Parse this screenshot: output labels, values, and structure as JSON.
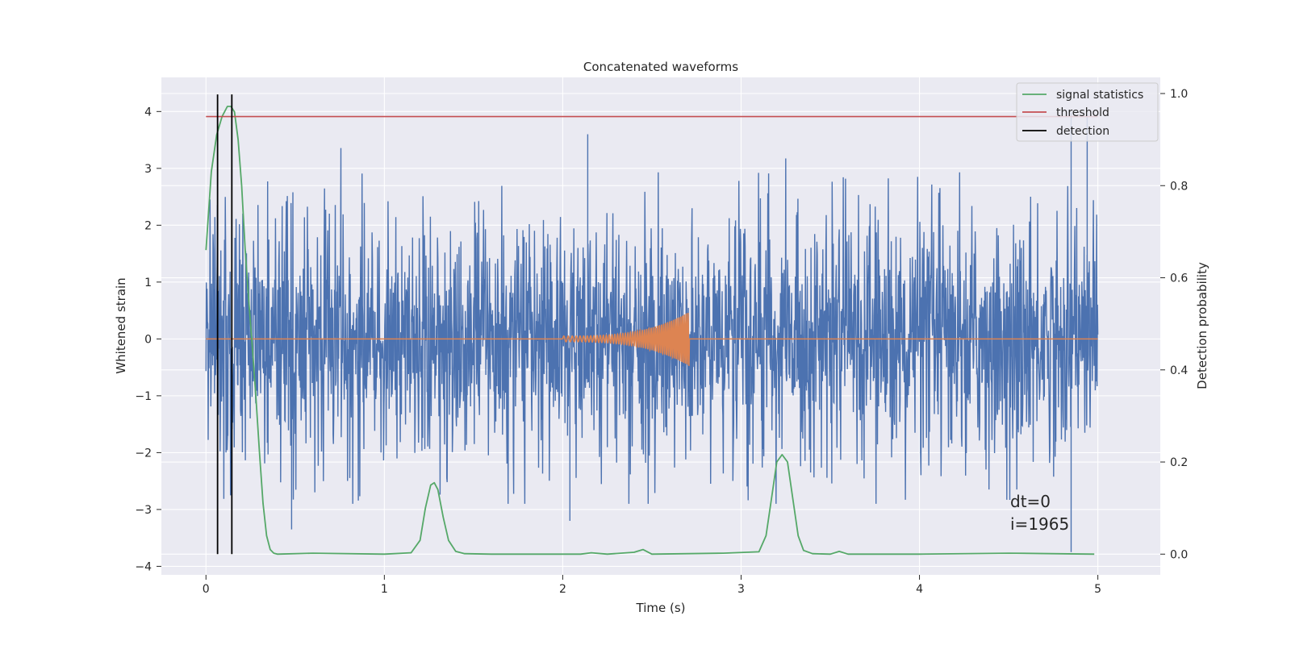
{
  "chart_data": {
    "type": "line",
    "title": "Concatenated waveforms",
    "xlabel": "Time (s)",
    "ylabel": "Whitened strain",
    "y2label": "Detection probability",
    "xlim": [
      -0.25,
      5.35
    ],
    "ylim": [
      -4.15,
      4.6
    ],
    "y2lim": [
      -0.045,
      1.035
    ],
    "xticks": [
      0,
      1,
      2,
      3,
      4,
      5
    ],
    "yticks": [
      -4,
      -3,
      -2,
      -1,
      0,
      1,
      2,
      3,
      4
    ],
    "y2ticks": [
      0.0,
      0.2,
      0.4,
      0.6,
      0.8,
      1.0
    ],
    "xtick_labels": [
      "0",
      "1",
      "2",
      "3",
      "4",
      "5"
    ],
    "ytick_labels": [
      "−4",
      "−3",
      "−2",
      "−1",
      "0",
      "1",
      "2",
      "3",
      "4"
    ],
    "y2tick_labels": [
      "0.0",
      "0.2",
      "0.4",
      "0.6",
      "0.8",
      "1.0"
    ],
    "grid": true,
    "legend_position": "top-right",
    "colors": {
      "strain": "#4c72b0",
      "template": "#dd8452",
      "statistics": "#55a868",
      "threshold": "#c44e52",
      "detection": "#000000",
      "background": "#eaeaf2"
    },
    "series": [
      {
        "name": "signal statistics",
        "axis": "right",
        "x": [
          0.0,
          0.03,
          0.06,
          0.09,
          0.12,
          0.14,
          0.16,
          0.18,
          0.2,
          0.22,
          0.24,
          0.26,
          0.28,
          0.3,
          0.32,
          0.34,
          0.36,
          0.38,
          0.4,
          0.6,
          1.0,
          1.15,
          1.2,
          1.23,
          1.26,
          1.28,
          1.3,
          1.33,
          1.36,
          1.4,
          1.45,
          1.6,
          2.1,
          2.16,
          2.25,
          2.4,
          2.45,
          2.5,
          2.9,
          3.1,
          3.14,
          3.17,
          3.2,
          3.23,
          3.26,
          3.29,
          3.32,
          3.35,
          3.4,
          3.5,
          3.55,
          3.6,
          4.0,
          4.5,
          4.98
        ],
        "values": [
          0.66,
          0.83,
          0.91,
          0.95,
          0.972,
          0.972,
          0.96,
          0.9,
          0.8,
          0.66,
          0.55,
          0.45,
          0.34,
          0.22,
          0.11,
          0.04,
          0.01,
          0.002,
          0.0,
          0.002,
          0.0,
          0.003,
          0.03,
          0.1,
          0.15,
          0.155,
          0.14,
          0.08,
          0.03,
          0.006,
          0.001,
          0.0,
          0.0,
          0.003,
          0.0,
          0.004,
          0.01,
          0.0,
          0.002,
          0.005,
          0.04,
          0.12,
          0.2,
          0.216,
          0.2,
          0.12,
          0.04,
          0.008,
          0.001,
          0.0,
          0.006,
          0.0,
          0.0,
          0.002,
          0.0
        ]
      },
      {
        "name": "threshold",
        "axis": "right",
        "x": [
          0.0,
          5.0
        ],
        "values": [
          0.95,
          0.95
        ]
      },
      {
        "name": "detection",
        "axis": "right",
        "x": [
          0.065,
          0.145
        ],
        "ymin": 0.0,
        "ymax": 0.998
      }
    ],
    "strain_series": {
      "x_range": [
        0.0,
        5.0
      ],
      "approx_envelope": [
        -2.9,
        3.6
      ],
      "notable_spikes": [
        {
          "x": 2.14,
          "y": 3.6
        },
        {
          "x": 4.85,
          "y": 3.98
        },
        {
          "x": 4.94,
          "y": 3.95
        },
        {
          "x": 4.85,
          "y": -3.75
        },
        {
          "x": 2.04,
          "y": -3.2
        },
        {
          "x": 0.48,
          "y": -3.35
        }
      ]
    },
    "template_series": {
      "x_range": [
        0.0,
        5.0
      ],
      "chirp_start": 2.0,
      "chirp_end": 2.71,
      "peak_amplitude": 0.48
    },
    "annotations": [
      "dt=0",
      "i=1965"
    ]
  }
}
